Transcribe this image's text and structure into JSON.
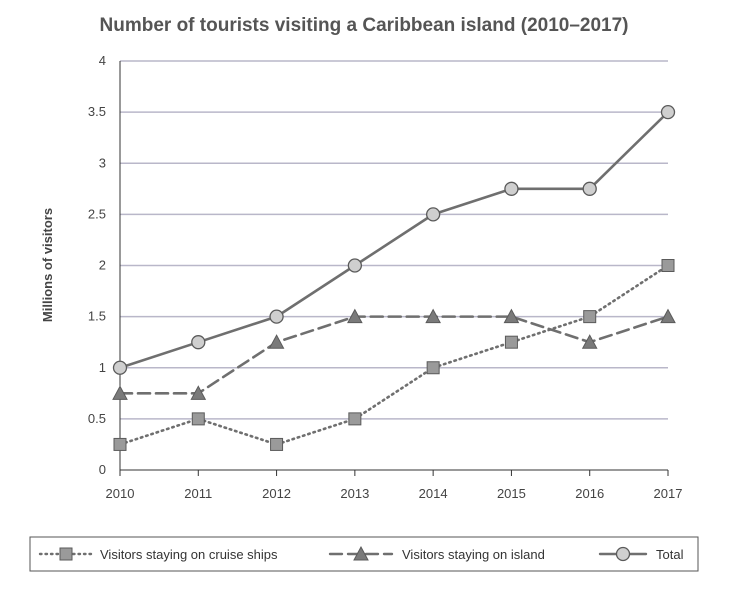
{
  "chart_data": {
    "type": "line",
    "title": "Number of tourists visiting a Caribbean island (2010–2017)",
    "xlabel": "",
    "ylabel": "Millions of visitors",
    "categories": [
      "2010",
      "2011",
      "2012",
      "2013",
      "2014",
      "2015",
      "2016",
      "2017"
    ],
    "yticks": [
      "0",
      "0.5",
      "1",
      "1.5",
      "2",
      "2.5",
      "3",
      "3.5",
      "4"
    ],
    "ylim": [
      0,
      4
    ],
    "grid": true,
    "legend_position": "bottom",
    "series": [
      {
        "name": "Visitors staying on cruise ships",
        "line_style": "dotted",
        "marker": "square",
        "values": [
          0.25,
          0.5,
          0.25,
          0.5,
          1,
          1.25,
          1.5,
          2
        ]
      },
      {
        "name": "Visitors staying on island",
        "line_style": "dashed",
        "marker": "triangle",
        "values": [
          0.75,
          0.75,
          1.25,
          1.5,
          1.5,
          1.5,
          1.25,
          1.5
        ]
      },
      {
        "name": "Total",
        "line_style": "solid",
        "marker": "circle",
        "values": [
          1,
          1.25,
          1.5,
          2,
          2.5,
          2.75,
          2.75,
          3.5
        ]
      }
    ]
  },
  "colors": {
    "line": "#6f6f6f",
    "marker_fill": "#9a9a9a",
    "circle_fill": "#cfcfcf",
    "grid": "#b9b7c9",
    "axis": "#333333"
  }
}
